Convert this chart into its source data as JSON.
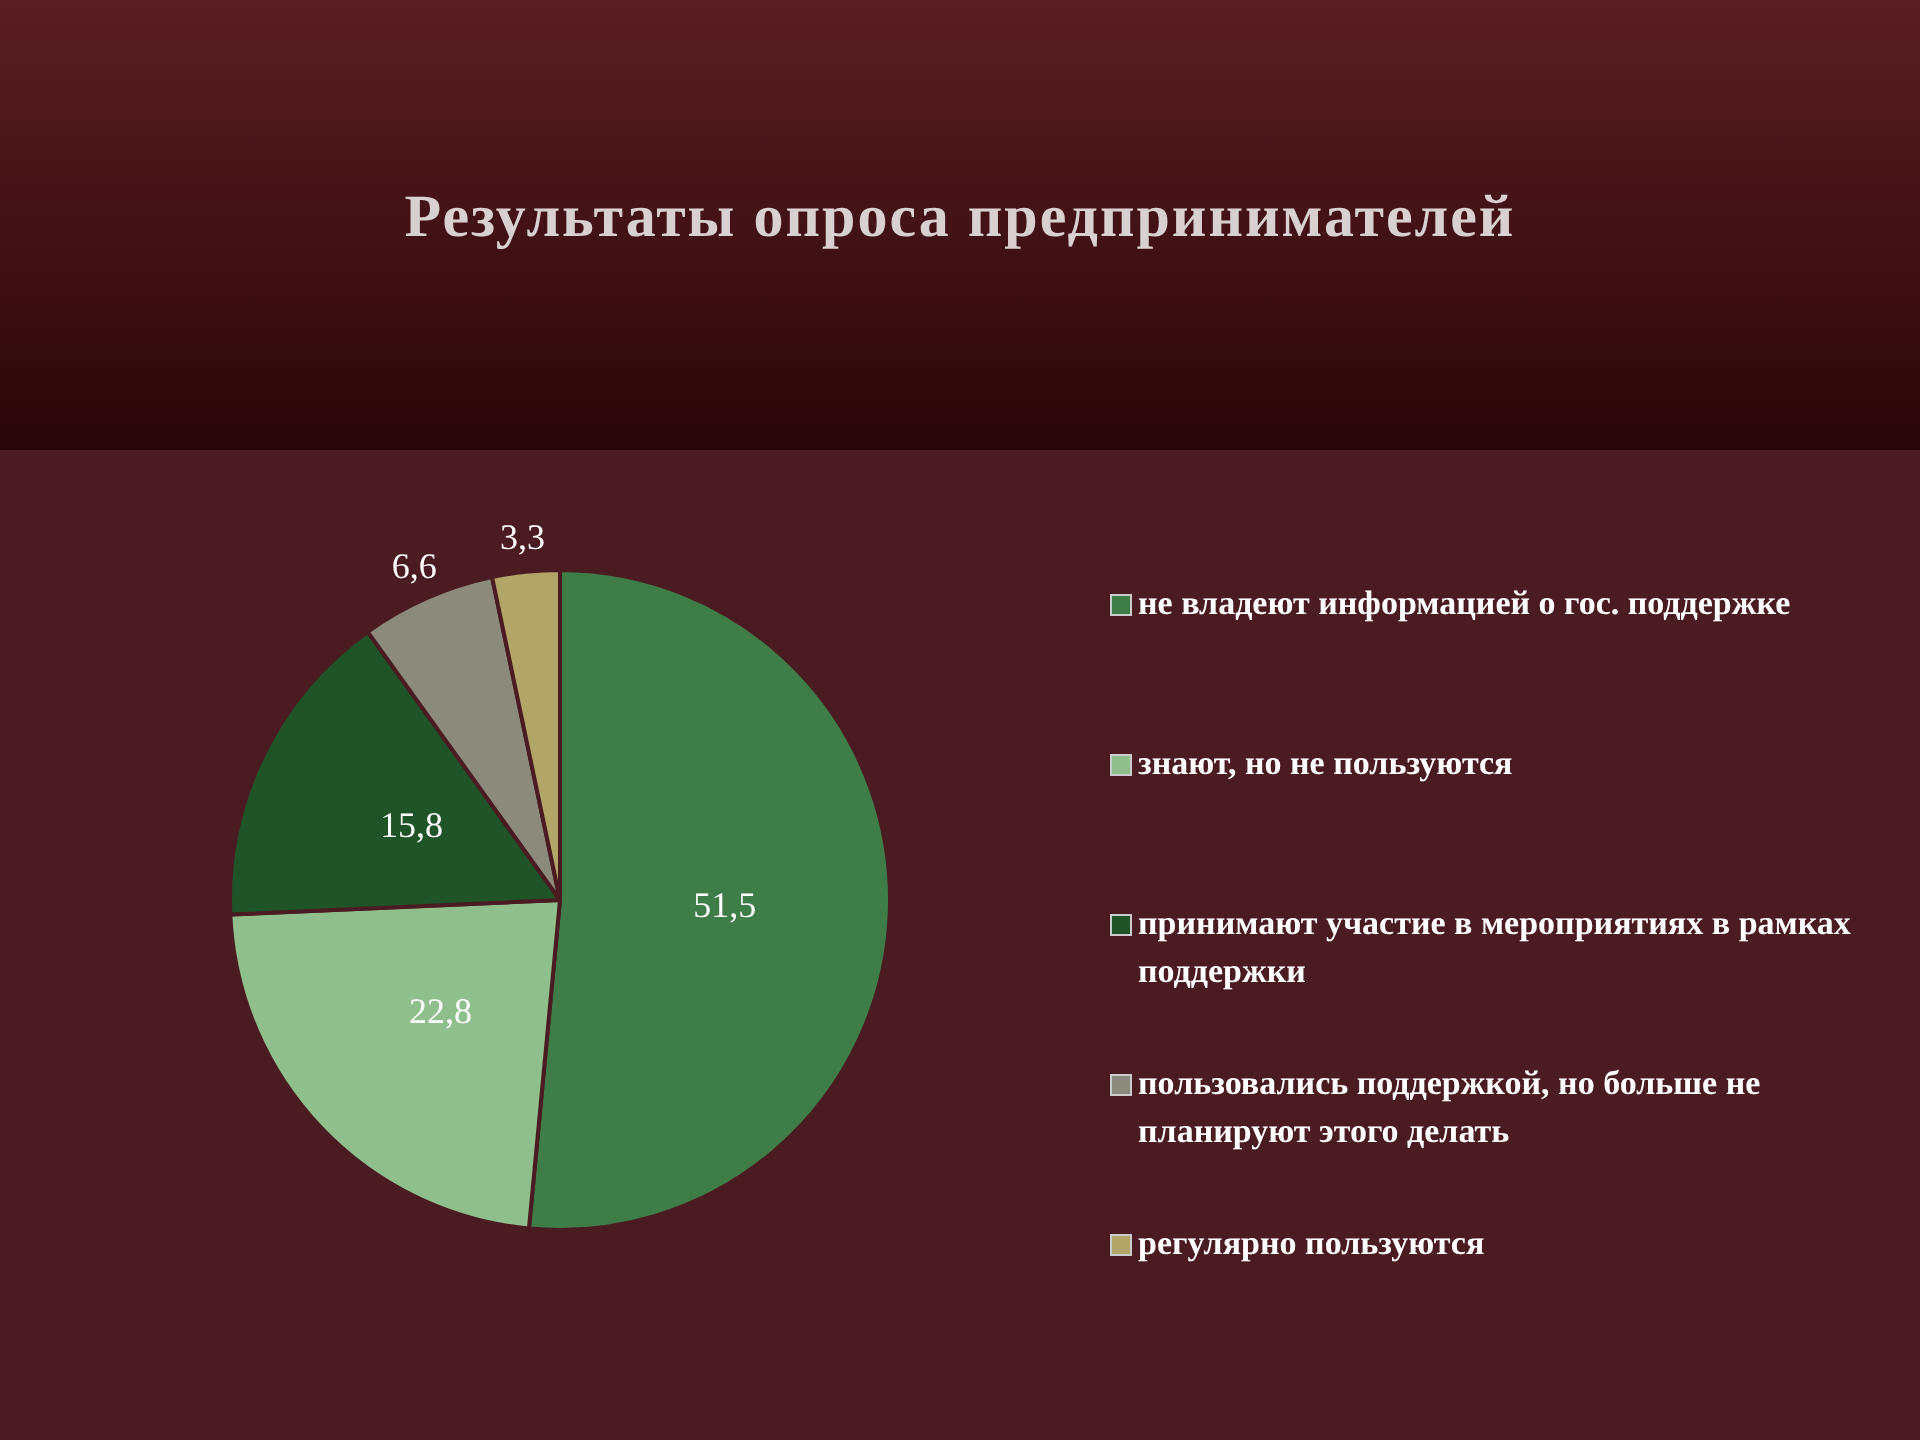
{
  "chart_data": {
    "type": "pie",
    "title": "Результаты опроса предпринимателей",
    "categories": [
      "не владеют информацией о гос. поддержке",
      "знают, но не пользуются",
      "принимают участие в мероприятиях в рамках поддержки",
      "пользовались поддержкой, но больше не планируют этого делать",
      "регулярно пользуются"
    ],
    "values": [
      51.5,
      22.8,
      15.8,
      6.6,
      3.3
    ],
    "value_labels": [
      "51,5",
      "22,8",
      "15,8",
      "6,6",
      "3,3"
    ],
    "colors": [
      "#3f7d48",
      "#8fbf8c",
      "#1f5428",
      "#8c8a7c",
      "#b3a467"
    ],
    "legend": "right"
  }
}
